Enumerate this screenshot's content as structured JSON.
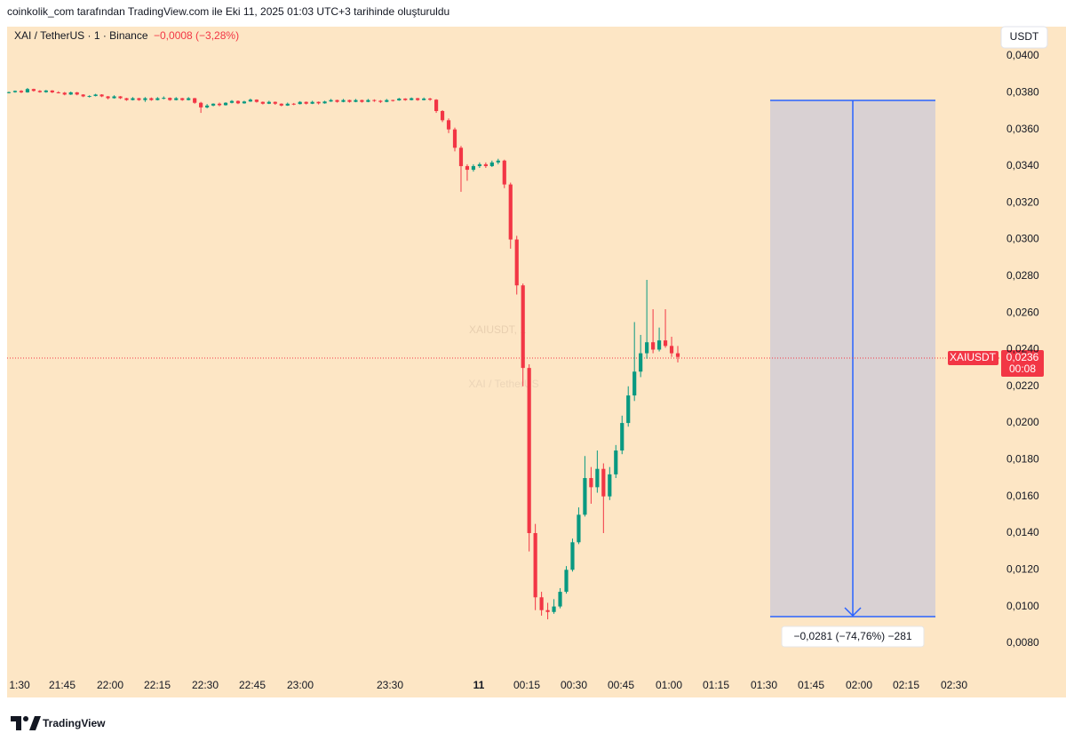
{
  "header": "coinkolik_com tarafından TradingView.com ile Eki 11, 2025 01:03 UTC+3 tarihinde oluşturuldu",
  "chart_data": {
    "type": "candlestick",
    "title": "XAI / TetherUS · 1 · Binance",
    "change": "−0,0008 (−3,28%)",
    "watermark": "XAIUSDT, 1",
    "watermark_subtitle": "XAI / TetherUS",
    "price_axis_unit": "USDT",
    "up_color": "#089981",
    "down_color": "#f23645",
    "ylim": [
      0.0063,
      0.0416
    ],
    "yticks": [
      {
        "value": 0.008,
        "label": "0,0080"
      },
      {
        "value": 0.01,
        "label": "0,0100"
      },
      {
        "value": 0.012,
        "label": "0,0120"
      },
      {
        "value": 0.014,
        "label": "0,0140"
      },
      {
        "value": 0.016,
        "label": "0,0160"
      },
      {
        "value": 0.018,
        "label": "0,0180"
      },
      {
        "value": 0.02,
        "label": "0,0200"
      },
      {
        "value": 0.022,
        "label": "0,0220"
      },
      {
        "value": 0.024,
        "label": "0,0240"
      },
      {
        "value": 0.026,
        "label": "0,0260"
      },
      {
        "value": 0.028,
        "label": "0,0280"
      },
      {
        "value": 0.03,
        "label": "0,0300"
      },
      {
        "value": 0.032,
        "label": "0,0320"
      },
      {
        "value": 0.034,
        "label": "0,0340"
      },
      {
        "value": 0.036,
        "label": "0,0360"
      },
      {
        "value": 0.038,
        "label": "0,0380"
      },
      {
        "value": 0.04,
        "label": "0,0400"
      }
    ],
    "x_axis_labels": [
      "1:30",
      "21:45",
      "22:00",
      "22:15",
      "22:30",
      "22:45",
      "23:00",
      "23:30",
      "11",
      "00:15",
      "00:30",
      "00:45",
      "01:00",
      "01:15",
      "01:30",
      "01:45",
      "02:00",
      "02:15",
      "02:30"
    ],
    "grid": false,
    "candles": [
      [
        0.038,
        0.03806,
        0.03796,
        0.03803
      ],
      [
        0.03803,
        0.03812,
        0.038,
        0.0381
      ],
      [
        0.0381,
        0.03814,
        0.03798,
        0.03802
      ],
      [
        0.03802,
        0.03826,
        0.038,
        0.0382
      ],
      [
        0.0382,
        0.03822,
        0.03806,
        0.0381
      ],
      [
        0.0381,
        0.03814,
        0.038,
        0.03803
      ],
      [
        0.03803,
        0.03815,
        0.038,
        0.03812
      ],
      [
        0.03812,
        0.03814,
        0.03798,
        0.03802
      ],
      [
        0.03802,
        0.03808,
        0.03796,
        0.038
      ],
      [
        0.038,
        0.03804,
        0.03786,
        0.0379
      ],
      [
        0.0379,
        0.03806,
        0.03788,
        0.03802
      ],
      [
        0.03802,
        0.03804,
        0.03786,
        0.0379
      ],
      [
        0.0379,
        0.03792,
        0.03776,
        0.0378
      ],
      [
        0.0378,
        0.03786,
        0.03774,
        0.03782
      ],
      [
        0.03782,
        0.03794,
        0.0378,
        0.0379
      ],
      [
        0.0379,
        0.03792,
        0.03776,
        0.0378
      ],
      [
        0.0378,
        0.03782,
        0.03764,
        0.0377
      ],
      [
        0.0377,
        0.03786,
        0.03768,
        0.0378
      ],
      [
        0.0378,
        0.03782,
        0.03766,
        0.0377
      ],
      [
        0.0377,
        0.03772,
        0.03756,
        0.0376
      ],
      [
        0.0376,
        0.03776,
        0.03758,
        0.0377
      ],
      [
        0.0377,
        0.03772,
        0.03756,
        0.0376
      ],
      [
        0.0376,
        0.03776,
        0.0375,
        0.0377
      ],
      [
        0.0377,
        0.03774,
        0.03756,
        0.0376
      ],
      [
        0.0376,
        0.03776,
        0.03758,
        0.0377
      ],
      [
        0.0377,
        0.0378,
        0.03764,
        0.03772
      ],
      [
        0.03772,
        0.03774,
        0.03756,
        0.0376
      ],
      [
        0.0376,
        0.03776,
        0.03758,
        0.0377
      ],
      [
        0.0377,
        0.03772,
        0.03756,
        0.0376
      ],
      [
        0.0376,
        0.03776,
        0.03758,
        0.0377
      ],
      [
        0.0377,
        0.03772,
        0.0374,
        0.03745
      ],
      [
        0.03745,
        0.0375,
        0.0369,
        0.0372
      ],
      [
        0.0372,
        0.03738,
        0.03715,
        0.0373
      ],
      [
        0.0373,
        0.03742,
        0.03726,
        0.0374
      ],
      [
        0.0374,
        0.03746,
        0.03726,
        0.03732
      ],
      [
        0.03732,
        0.03748,
        0.0373,
        0.03745
      ],
      [
        0.03745,
        0.0376,
        0.03742,
        0.03755
      ],
      [
        0.03755,
        0.03758,
        0.03738,
        0.03742
      ],
      [
        0.03742,
        0.03756,
        0.0374,
        0.03752
      ],
      [
        0.03752,
        0.03768,
        0.0375,
        0.03762
      ],
      [
        0.03762,
        0.03764,
        0.03746,
        0.0375
      ],
      [
        0.0375,
        0.03752,
        0.03736,
        0.0374
      ],
      [
        0.0374,
        0.03756,
        0.03738,
        0.0375
      ],
      [
        0.0375,
        0.03752,
        0.03734,
        0.0374
      ],
      [
        0.0374,
        0.03742,
        0.03726,
        0.0373
      ],
      [
        0.0373,
        0.03746,
        0.03728,
        0.0374
      ],
      [
        0.0374,
        0.03744,
        0.03732,
        0.03738
      ],
      [
        0.03738,
        0.03754,
        0.03736,
        0.0375
      ],
      [
        0.0375,
        0.03752,
        0.03736,
        0.0374
      ],
      [
        0.0374,
        0.03756,
        0.03738,
        0.0375
      ],
      [
        0.0375,
        0.03752,
        0.03736,
        0.03742
      ],
      [
        0.03742,
        0.03756,
        0.0374,
        0.03752
      ],
      [
        0.03752,
        0.03766,
        0.0375,
        0.0376
      ],
      [
        0.0376,
        0.03762,
        0.03746,
        0.0375
      ],
      [
        0.0375,
        0.03766,
        0.03748,
        0.0376
      ],
      [
        0.0376,
        0.03762,
        0.03746,
        0.0375
      ],
      [
        0.0375,
        0.03766,
        0.03748,
        0.0376
      ],
      [
        0.0376,
        0.03762,
        0.03746,
        0.0375
      ],
      [
        0.0375,
        0.03766,
        0.03748,
        0.0376
      ],
      [
        0.0376,
        0.03764,
        0.0375,
        0.03756
      ],
      [
        0.03756,
        0.0376,
        0.03744,
        0.0375
      ],
      [
        0.0375,
        0.03766,
        0.03748,
        0.0376
      ],
      [
        0.0376,
        0.03762,
        0.03752,
        0.03758
      ],
      [
        0.03758,
        0.03772,
        0.03756,
        0.03768
      ],
      [
        0.03768,
        0.0377,
        0.03756,
        0.0376
      ],
      [
        0.0376,
        0.03774,
        0.03758,
        0.0377
      ],
      [
        0.0377,
        0.03772,
        0.03756,
        0.0376
      ],
      [
        0.0376,
        0.03774,
        0.03758,
        0.03768
      ],
      [
        0.03768,
        0.03772,
        0.03756,
        0.03762
      ],
      [
        0.03762,
        0.03765,
        0.0369,
        0.037
      ],
      [
        0.037,
        0.03705,
        0.0364,
        0.0365
      ],
      [
        0.0365,
        0.0366,
        0.0358,
        0.036
      ],
      [
        0.036,
        0.0361,
        0.0348,
        0.035
      ],
      [
        0.035,
        0.0351,
        0.0326,
        0.034
      ],
      [
        0.034,
        0.0341,
        0.0332,
        0.0338
      ],
      [
        0.0338,
        0.0341,
        0.0337,
        0.034
      ],
      [
        0.034,
        0.0342,
        0.0339,
        0.0341
      ],
      [
        0.0341,
        0.0342,
        0.0339,
        0.034
      ],
      [
        0.034,
        0.0343,
        0.03395,
        0.0342
      ],
      [
        0.0342,
        0.0344,
        0.0341,
        0.0343
      ],
      [
        0.0343,
        0.03435,
        0.0328,
        0.033
      ],
      [
        0.033,
        0.0331,
        0.0295,
        0.03
      ],
      [
        0.03,
        0.0302,
        0.027,
        0.0275
      ],
      [
        0.0275,
        0.0276,
        0.022,
        0.023
      ],
      [
        0.023,
        0.0232,
        0.013,
        0.014
      ],
      [
        0.014,
        0.0145,
        0.0098,
        0.0105
      ],
      [
        0.0105,
        0.0108,
        0.0095,
        0.0098
      ],
      [
        0.0098,
        0.0102,
        0.0093,
        0.0097
      ],
      [
        0.0097,
        0.0104,
        0.0096,
        0.01
      ],
      [
        0.01,
        0.011,
        0.0099,
        0.0108
      ],
      [
        0.0108,
        0.0122,
        0.0107,
        0.012
      ],
      [
        0.012,
        0.0137,
        0.0119,
        0.0135
      ],
      [
        0.0135,
        0.0154,
        0.0134,
        0.015
      ],
      [
        0.015,
        0.0182,
        0.0149,
        0.017
      ],
      [
        0.017,
        0.0176,
        0.0156,
        0.0165
      ],
      [
        0.0165,
        0.0185,
        0.0162,
        0.0175
      ],
      [
        0.0175,
        0.0178,
        0.014,
        0.016
      ],
      [
        0.016,
        0.0176,
        0.0158,
        0.0172
      ],
      [
        0.0172,
        0.0188,
        0.017,
        0.0185
      ],
      [
        0.0185,
        0.0204,
        0.0183,
        0.02
      ],
      [
        0.02,
        0.022,
        0.0198,
        0.0215
      ],
      [
        0.0215,
        0.0255,
        0.0212,
        0.0228
      ],
      [
        0.0228,
        0.0248,
        0.0225,
        0.0238
      ],
      [
        0.0238,
        0.0278,
        0.0235,
        0.0244
      ],
      [
        0.0244,
        0.0262,
        0.0238,
        0.024
      ],
      [
        0.024,
        0.0252,
        0.0239,
        0.0245
      ],
      [
        0.0245,
        0.0262,
        0.0241,
        0.0242
      ],
      [
        0.0242,
        0.0247,
        0.0236,
        0.0238
      ],
      [
        0.0238,
        0.0242,
        0.0233,
        0.0236
      ]
    ],
    "price_tag": {
      "symbol": "XAIUSDT",
      "price": "0,0236",
      "countdown": "00:08"
    },
    "measure_label": "−0,0281 (−74,76%) −281"
  },
  "footer": {
    "logo": "TradingView"
  }
}
